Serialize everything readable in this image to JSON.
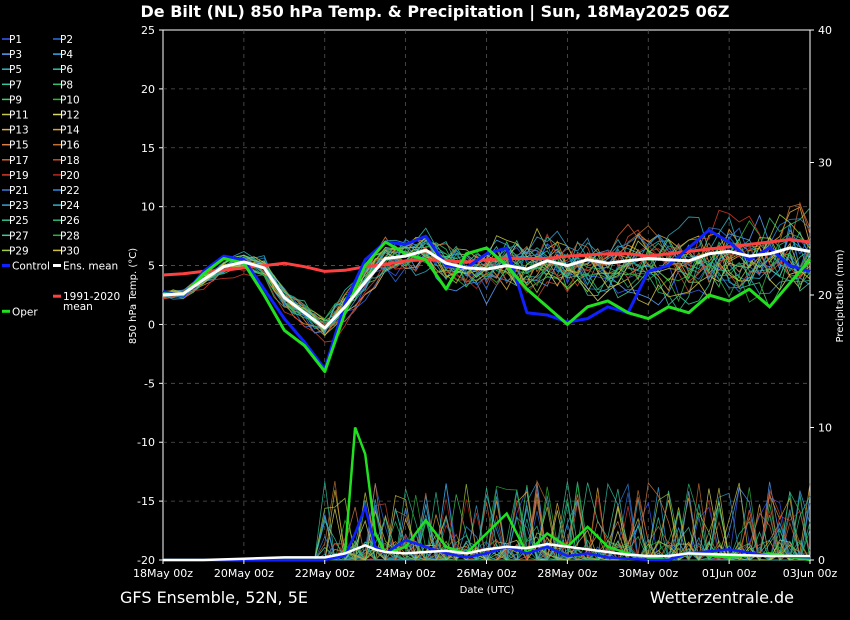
{
  "chart_data": {
    "type": "line",
    "title": "De Bilt  (NL)  850 hPa Temp. & Precipitation | Sun, 18May2025 06Z",
    "xlabel": "Date (UTC)",
    "ylabel": "850 hPa Temp. (°C)",
    "y2label": "Precipitation (mm)",
    "ylim": [
      -20,
      25
    ],
    "y2lim": [
      0,
      40
    ],
    "yticks": [
      "25",
      "20",
      "15",
      "10",
      "5",
      "0",
      "-5",
      "-10",
      "-15",
      "-20"
    ],
    "y2ticks": [
      "40",
      "30",
      "20",
      "10",
      "0"
    ],
    "xticks": [
      "18May 00z",
      "20May 00z",
      "22May 00z",
      "24May 00z",
      "26May 00z",
      "28May 00z",
      "30May 00z",
      "01Jun 00z",
      "03Jun 00z"
    ],
    "x_hours": [
      0,
      384
    ],
    "grid": true,
    "legend_position": "left",
    "legend": [
      {
        "name": "P1",
        "color": "#3b5cff"
      },
      {
        "name": "P2",
        "color": "#2f6fe0"
      },
      {
        "name": "P3",
        "color": "#5aa0ff"
      },
      {
        "name": "P4",
        "color": "#38a8e8"
      },
      {
        "name": "P5",
        "color": "#2fb5c8"
      },
      {
        "name": "P6",
        "color": "#2fc0a8"
      },
      {
        "name": "P7",
        "color": "#30c8a0"
      },
      {
        "name": "P8",
        "color": "#33c070"
      },
      {
        "name": "P9",
        "color": "#40d060"
      },
      {
        "name": "P10",
        "color": "#30b830"
      },
      {
        "name": "P11",
        "color": "#c8c848"
      },
      {
        "name": "P12",
        "color": "#d8d868"
      },
      {
        "name": "P13",
        "color": "#e0b040"
      },
      {
        "name": "P14",
        "color": "#e0a030"
      },
      {
        "name": "P15",
        "color": "#d88048"
      },
      {
        "name": "P16",
        "color": "#c07030"
      },
      {
        "name": "P17",
        "color": "#d86030"
      },
      {
        "name": "P18",
        "color": "#c84a30"
      },
      {
        "name": "P19",
        "color": "#d83a2a"
      },
      {
        "name": "P20",
        "color": "#b82820"
      },
      {
        "name": "P21",
        "color": "#3a7ad8"
      },
      {
        "name": "P22",
        "color": "#2a8ae0"
      },
      {
        "name": "P23",
        "color": "#3aa0d0"
      },
      {
        "name": "P24",
        "color": "#30b0c0"
      },
      {
        "name": "P25",
        "color": "#30c090"
      },
      {
        "name": "P26",
        "color": "#28b870"
      },
      {
        "name": "P27",
        "color": "#40c8a0"
      },
      {
        "name": "P28",
        "color": "#30b040"
      },
      {
        "name": "P29",
        "color": "#a0d040"
      },
      {
        "name": "P30",
        "color": "#d0c040"
      },
      {
        "name": "Control",
        "color": "#1020ff"
      },
      {
        "name": "Ens. mean",
        "color": "#ffffff"
      },
      {
        "name": "1991-2020 mean",
        "color": "#ff4040"
      },
      {
        "name": "Oper",
        "color": "#20e020"
      }
    ],
    "series": [
      {
        "name": "Ens. mean",
        "color": "#ffffff",
        "width": 3,
        "x": [
          0,
          12,
          24,
          36,
          48,
          60,
          72,
          84,
          96,
          108,
          120,
          132,
          144,
          156,
          168,
          180,
          192,
          204,
          216,
          228,
          240,
          252,
          264,
          276,
          288,
          300,
          312,
          324,
          336,
          348,
          360,
          372,
          384
        ],
        "values": [
          2.5,
          2.6,
          3.8,
          4.9,
          5.3,
          4.8,
          2.3,
          1.0,
          -0.3,
          1.5,
          3.6,
          5.6,
          5.8,
          6.3,
          5.2,
          4.8,
          4.7,
          5.0,
          4.7,
          5.4,
          5.0,
          5.5,
          5.2,
          5.4,
          5.6,
          5.5,
          5.4,
          6.0,
          6.2,
          5.8,
          6.0,
          6.5,
          6.2
        ]
      },
      {
        "name": "1991-2020 mean",
        "color": "#ff4040",
        "width": 3,
        "x": [
          0,
          12,
          24,
          36,
          48,
          60,
          72,
          84,
          96,
          108,
          120,
          132,
          144,
          156,
          168,
          180,
          192,
          204,
          216,
          228,
          240,
          252,
          264,
          276,
          288,
          300,
          312,
          324,
          336,
          348,
          360,
          372,
          384
        ],
        "values": [
          4.2,
          4.3,
          4.5,
          4.6,
          4.8,
          5.0,
          5.2,
          4.9,
          4.5,
          4.6,
          4.9,
          5.1,
          5.4,
          5.5,
          5.4,
          5.3,
          5.5,
          5.6,
          5.6,
          5.6,
          5.8,
          5.9,
          6.0,
          6.0,
          5.8,
          6.0,
          6.2,
          6.4,
          6.6,
          6.8,
          7.0,
          7.2,
          7.0
        ]
      },
      {
        "name": "Control",
        "color": "#1020ff",
        "width": 3,
        "x": [
          0,
          12,
          24,
          36,
          48,
          60,
          72,
          84,
          96,
          108,
          120,
          132,
          144,
          156,
          168,
          180,
          192,
          204,
          216,
          228,
          240,
          252,
          264,
          276,
          288,
          300,
          312,
          324,
          336,
          348,
          360,
          372,
          384
        ],
        "values": [
          2.8,
          2.4,
          4.5,
          5.8,
          5.5,
          3.0,
          0.5,
          -1.5,
          -3.8,
          1.8,
          5.5,
          7.0,
          6.8,
          7.5,
          5.0,
          4.8,
          6.0,
          6.5,
          1.0,
          0.8,
          0.2,
          0.5,
          1.5,
          1.0,
          4.5,
          5.0,
          6.5,
          8.0,
          7.0,
          5.5,
          6.5,
          5.0,
          4.5
        ]
      },
      {
        "name": "Oper",
        "color": "#20e020",
        "width": 3,
        "x": [
          0,
          12,
          24,
          36,
          48,
          60,
          72,
          84,
          96,
          108,
          120,
          132,
          144,
          156,
          168,
          180,
          192,
          204,
          216,
          228,
          240,
          252,
          264,
          276,
          288,
          300,
          312,
          324,
          336,
          348,
          360,
          372,
          384
        ],
        "values": [
          2.6,
          2.5,
          4.3,
          5.6,
          5.2,
          2.5,
          -0.5,
          -1.8,
          -4.0,
          1.0,
          5.0,
          7.0,
          6.0,
          5.5,
          3.0,
          6.0,
          6.5,
          5.0,
          3.0,
          1.5,
          0.0,
          1.5,
          2.0,
          1.0,
          0.5,
          1.5,
          1.0,
          2.5,
          2.0,
          3.0,
          1.5,
          3.5,
          5.5
        ]
      }
    ],
    "precipitation": [
      {
        "name": "Oper",
        "color": "#20e020",
        "x": [
          0,
          24,
          48,
          72,
          96,
          108,
          114,
          120,
          126,
          132,
          144,
          156,
          168,
          180,
          192,
          204,
          216,
          228,
          240,
          252,
          264,
          276,
          288,
          300,
          312,
          336,
          360,
          384
        ],
        "values": [
          0,
          0,
          0,
          0,
          0,
          0.5,
          10,
          8,
          2,
          0.5,
          1,
          3,
          1,
          0.5,
          2,
          3.5,
          0.5,
          2,
          1,
          2.5,
          1,
          0.5,
          0.2,
          0,
          0.5,
          0.2,
          0.5,
          0
        ]
      },
      {
        "name": "Control",
        "color": "#1020ff",
        "x": [
          0,
          24,
          48,
          72,
          96,
          108,
          114,
          120,
          126,
          132,
          144,
          156,
          168,
          180,
          192,
          204,
          216,
          228,
          240,
          252,
          264,
          276,
          288,
          300,
          312,
          336,
          360,
          384
        ],
        "values": [
          0,
          0,
          0,
          0,
          0,
          0.3,
          2,
          4,
          1,
          0.5,
          1.5,
          1,
          0.5,
          0.2,
          0.5,
          1,
          0.5,
          1,
          0.3,
          0.5,
          0.2,
          0.1,
          0,
          0,
          0.5,
          0.8,
          0.3,
          0.2
        ]
      },
      {
        "name": "Ens. mean",
        "color": "#ffffff",
        "x": [
          0,
          24,
          48,
          72,
          96,
          108,
          114,
          120,
          126,
          132,
          144,
          156,
          168,
          180,
          192,
          204,
          216,
          228,
          240,
          252,
          264,
          276,
          288,
          300,
          312,
          336,
          360,
          384
        ],
        "values": [
          0,
          0,
          0.1,
          0.2,
          0.2,
          0.5,
          0.8,
          1.1,
          0.8,
          0.6,
          0.5,
          0.6,
          0.7,
          0.5,
          0.8,
          1,
          0.9,
          1.2,
          1,
          0.8,
          0.6,
          0.4,
          0.3,
          0.3,
          0.5,
          0.4,
          0.3,
          0.3
        ]
      }
    ]
  },
  "footer": {
    "left": "GFS Ensemble, 52N, 5E",
    "right": "Wetterzentrale.de"
  }
}
